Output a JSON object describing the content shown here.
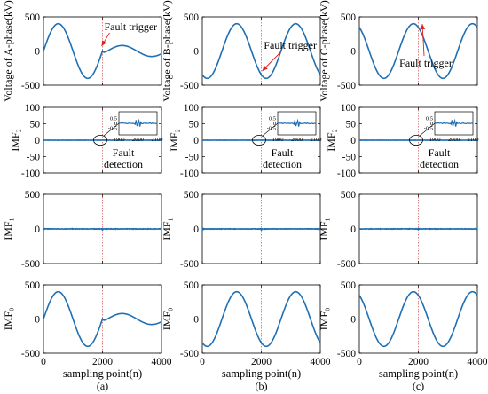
{
  "chart_data": {
    "type": "line",
    "series_color": "#1f6fb4",
    "marker_line_color": "#e06666",
    "arrow_color": "#e02020",
    "x_range": [
      0,
      4000
    ],
    "x_ticks": [
      "0",
      "2000",
      "4000"
    ],
    "x_label": "sampling point(n)",
    "fault_sample": 2000,
    "column_labels": [
      "(a)",
      "(b)",
      "(c)"
    ],
    "row_ylabels": [
      "",
      "IMF₂",
      "IMF₁",
      "IMF₀"
    ],
    "row_ylims": [
      [
        -500,
        500
      ],
      [
        -100,
        100
      ],
      [
        -500,
        500
      ],
      [
        -500,
        500
      ]
    ],
    "row_yticks": [
      [
        "500",
        "0",
        "-500"
      ],
      [
        "100",
        "50",
        "0",
        "-50",
        "-100"
      ],
      [
        "500",
        "0",
        "-500"
      ],
      [
        "500",
        "0",
        "-500"
      ]
    ],
    "top_ylabels": [
      "Voltage of A-phase(kV)",
      "Voltage of B-phase(kV)",
      "Voltage of C-phase(kV)"
    ],
    "annotations": {
      "fault_trigger": "Fault trigger",
      "fault_detection_l1": "Fault",
      "fault_detection_l2": "detection"
    },
    "inset": {
      "y_ticks": [
        "0.5",
        "0",
        "-0.5"
      ],
      "x_ticks": [
        "1900",
        "2000",
        "2100"
      ]
    },
    "columns": [
      {
        "phase": "A",
        "voltage_before": {
          "amplitude": 400,
          "period": 2000,
          "phase_deg": 0
        },
        "voltage_after": {
          "amplitude": 80,
          "period": 2000,
          "phase_deg": -30
        }
      },
      {
        "phase": "B",
        "voltage_before": {
          "amplitude": 400,
          "period": 2000,
          "phase_deg": -120
        },
        "voltage_after": {
          "amplitude": 400,
          "period": 2000,
          "phase_deg": -120
        }
      },
      {
        "phase": "C",
        "voltage_before": {
          "amplitude": 400,
          "period": 2000,
          "phase_deg": 120
        },
        "voltage_after": {
          "amplitude": 400,
          "period": 2000,
          "phase_deg": 120
        }
      }
    ]
  }
}
